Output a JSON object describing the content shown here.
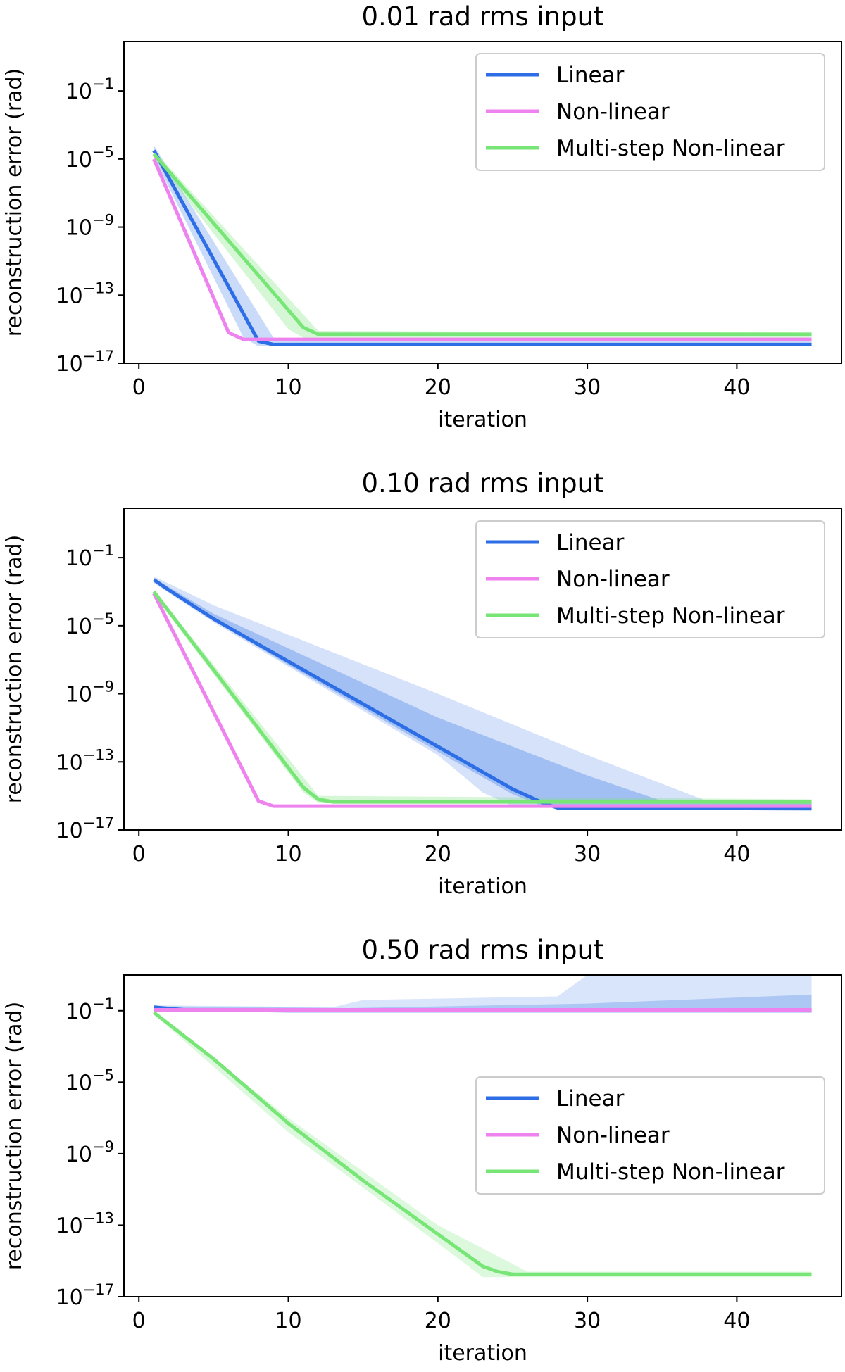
{
  "chart_data": [
    {
      "type": "line",
      "title": "0.01 rad rms input",
      "xlabel": "iteration",
      "ylabel": "reconstruction error (rad)",
      "yscale": "log",
      "xlim": [
        -1,
        47
      ],
      "ylim_exp": [
        -17,
        1.9
      ],
      "xticks": [
        0,
        10,
        20,
        30,
        40
      ],
      "yticks": [
        {
          "label": "10",
          "exp": "−1",
          "value": -1
        },
        {
          "label": "10",
          "exp": "−5",
          "value": -5
        },
        {
          "label": "10",
          "exp": "−9",
          "value": -9
        },
        {
          "label": "10",
          "exp": "−13",
          "value": -13
        },
        {
          "label": "10",
          "exp": "−17",
          "value": -17
        }
      ],
      "legend_position": "top-right",
      "series": [
        {
          "name": "Linear",
          "color": "#2d6ee6",
          "width": 5,
          "points": [
            [
              1,
              -4.5
            ],
            [
              8,
              -15.7
            ],
            [
              9,
              -15.9
            ],
            [
              45,
              -15.9
            ]
          ],
          "bands": [
            {
              "color": "#2d6ee6",
              "opacity": 0.25,
              "upper": [
                [
                  1,
                  -4.2
                ],
                [
                  9,
                  -15.5
                ],
                [
                  45,
                  -15.7
                ]
              ],
              "lower": [
                [
                  1,
                  -4.9
                ],
                [
                  7,
                  -15.5
                ],
                [
                  8,
                  -16.0
                ],
                [
                  45,
                  -16.0
                ]
              ]
            }
          ]
        },
        {
          "name": "Non-linear",
          "color": "#ee82ee",
          "width": 5,
          "points": [
            [
              1,
              -5.0
            ],
            [
              6,
              -15.2
            ],
            [
              7,
              -15.6
            ],
            [
              45,
              -15.6
            ]
          ],
          "bands": []
        },
        {
          "name": "Multi-step Non-linear",
          "color": "#77e677",
          "width": 5,
          "points": [
            [
              1,
              -4.7
            ],
            [
              11,
              -14.9
            ],
            [
              12,
              -15.3
            ],
            [
              45,
              -15.3
            ]
          ],
          "bands": [
            {
              "color": "#77e677",
              "opacity": 0.3,
              "upper": [
                [
                  1,
                  -4.5
                ],
                [
                  12,
                  -15.1
                ],
                [
                  45,
                  -15.2
                ]
              ],
              "lower": [
                [
                  1,
                  -4.9
                ],
                [
                  10,
                  -15.0
                ],
                [
                  11,
                  -15.5
                ],
                [
                  45,
                  -15.5
                ]
              ]
            }
          ]
        }
      ]
    },
    {
      "type": "line",
      "title": "0.10 rad rms input",
      "xlabel": "iteration",
      "ylabel": "reconstruction error (rad)",
      "yscale": "log",
      "xlim": [
        -1,
        47
      ],
      "ylim_exp": [
        -17,
        1.9
      ],
      "xticks": [
        0,
        10,
        20,
        30,
        40
      ],
      "yticks": [
        {
          "label": "10",
          "exp": "−1",
          "value": -1
        },
        {
          "label": "10",
          "exp": "−5",
          "value": -5
        },
        {
          "label": "10",
          "exp": "−9",
          "value": -9
        },
        {
          "label": "10",
          "exp": "−13",
          "value": -13
        },
        {
          "label": "10",
          "exp": "−17",
          "value": -17
        }
      ],
      "legend_position": "top-right",
      "series": [
        {
          "name": "Linear",
          "color": "#2d6ee6",
          "width": 5,
          "points": [
            [
              1,
              -2.3
            ],
            [
              2,
              -2.9
            ],
            [
              5,
              -4.6
            ],
            [
              10,
              -7.1
            ],
            [
              15,
              -9.6
            ],
            [
              20,
              -12.1
            ],
            [
              25,
              -14.6
            ],
            [
              27,
              -15.4
            ],
            [
              28,
              -15.7
            ],
            [
              45,
              -15.75
            ]
          ],
          "bands": [
            {
              "color": "#2d6ee6",
              "opacity": 0.2,
              "upper": [
                [
                  1,
                  -2.1
                ],
                [
                  5,
                  -3.8
                ],
                [
                  20,
                  -9.0
                ],
                [
                  30,
                  -12.6
                ],
                [
                  38,
                  -15.3
                ],
                [
                  45,
                  -15.4
                ]
              ],
              "lower": [
                [
                  1,
                  -2.5
                ],
                [
                  5,
                  -4.8
                ],
                [
                  10,
                  -7.4
                ],
                [
                  20,
                  -12.6
                ],
                [
                  23,
                  -14.8
                ],
                [
                  25,
                  -15.6
                ],
                [
                  45,
                  -15.75
                ]
              ]
            },
            {
              "color": "#2d6ee6",
              "opacity": 0.3,
              "upper": [
                [
                  1,
                  -2.2
                ],
                [
                  5,
                  -4.3
                ],
                [
                  20,
                  -10.4
                ],
                [
                  30,
                  -13.8
                ],
                [
                  35,
                  -15.3
                ],
                [
                  45,
                  -15.4
                ]
              ],
              "lower": [
                [
                  1,
                  -2.4
                ],
                [
                  5,
                  -4.7
                ],
                [
                  10,
                  -7.3
                ],
                [
                  20,
                  -12.4
                ],
                [
                  25,
                  -14.9
                ],
                [
                  27,
                  -15.6
                ],
                [
                  45,
                  -15.75
                ]
              ]
            }
          ]
        },
        {
          "name": "Non-linear",
          "color": "#ee82ee",
          "width": 5,
          "points": [
            [
              1,
              -3.1
            ],
            [
              8,
              -15.3
            ],
            [
              9,
              -15.6
            ],
            [
              45,
              -15.6
            ]
          ],
          "bands": []
        },
        {
          "name": "Multi-step Non-linear",
          "color": "#77e677",
          "width": 5,
          "points": [
            [
              1,
              -3.0
            ],
            [
              11,
              -14.5
            ],
            [
              12,
              -15.2
            ],
            [
              13,
              -15.35
            ],
            [
              45,
              -15.35
            ]
          ],
          "bands": [
            {
              "color": "#77e677",
              "opacity": 0.3,
              "upper": [
                [
                  1,
                  -2.9
                ],
                [
                  12,
                  -15.0
                ],
                [
                  45,
                  -15.2
                ]
              ],
              "lower": [
                [
                  1,
                  -3.2
                ],
                [
                  11,
                  -14.8
                ],
                [
                  12,
                  -15.4
                ],
                [
                  45,
                  -15.5
                ]
              ]
            }
          ]
        }
      ]
    },
    {
      "type": "line",
      "title": "0.50 rad rms input",
      "xlabel": "iteration",
      "ylabel": "reconstruction error (rad)",
      "yscale": "log",
      "xlim": [
        -1,
        47
      ],
      "ylim_exp": [
        -17,
        1.0
      ],
      "xticks": [
        0,
        10,
        20,
        30,
        40
      ],
      "yticks": [
        {
          "label": "10",
          "exp": "−1",
          "value": -1
        },
        {
          "label": "10",
          "exp": "−5",
          "value": -5
        },
        {
          "label": "10",
          "exp": "−9",
          "value": -9
        },
        {
          "label": "10",
          "exp": "−13",
          "value": -13
        },
        {
          "label": "10",
          "exp": "−17",
          "value": -17
        }
      ],
      "legend_position": "center-right",
      "series": [
        {
          "name": "Linear",
          "color": "#2d6ee6",
          "width": 5,
          "points": [
            [
              1,
              -0.8
            ],
            [
              3,
              -0.95
            ],
            [
              10,
              -1.0
            ],
            [
              45,
              -1.0
            ]
          ],
          "bands": [
            {
              "color": "#2d6ee6",
              "opacity": 0.18,
              "upper": [
                [
                  1,
                  -0.7
                ],
                [
                  13,
                  -0.8
                ],
                [
                  15,
                  -0.4
                ],
                [
                  28,
                  -0.2
                ],
                [
                  30,
                  1.0
                ],
                [
                  45,
                  1.0
                ]
              ],
              "lower": [
                [
                  1,
                  -1.0
                ],
                [
                  45,
                  -1.1
                ]
              ]
            },
            {
              "color": "#2d6ee6",
              "opacity": 0.25,
              "upper": [
                [
                  1,
                  -0.75
                ],
                [
                  14,
                  -0.85
                ],
                [
                  30,
                  -0.6
                ],
                [
                  45,
                  -0.1
                ]
              ],
              "lower": [
                [
                  1,
                  -0.95
                ],
                [
                  45,
                  -1.05
                ]
              ]
            }
          ]
        },
        {
          "name": "Non-linear",
          "color": "#ee82ee",
          "width": 5,
          "points": [
            [
              1,
              -0.95
            ],
            [
              45,
              -0.95
            ]
          ],
          "bands": []
        },
        {
          "name": "Multi-step Non-linear",
          "color": "#77e677",
          "width": 5,
          "points": [
            [
              1,
              -1.1
            ],
            [
              5,
              -3.7
            ],
            [
              10,
              -7.3
            ],
            [
              15,
              -10.5
            ],
            [
              20,
              -13.5
            ],
            [
              23,
              -15.3
            ],
            [
              24,
              -15.6
            ],
            [
              25,
              -15.75
            ],
            [
              45,
              -15.75
            ]
          ],
          "bands": [
            {
              "color": "#77e677",
              "opacity": 0.25,
              "upper": [
                [
                  1,
                  -1.0
                ],
                [
                  10,
                  -7.0
                ],
                [
                  20,
                  -13.0
                ],
                [
                  26,
                  -15.6
                ],
                [
                  45,
                  -15.6
                ]
              ],
              "lower": [
                [
                  1,
                  -1.2
                ],
                [
                  10,
                  -7.8
                ],
                [
                  20,
                  -14.0
                ],
                [
                  23,
                  -15.9
                ],
                [
                  45,
                  -15.9
                ]
              ]
            }
          ]
        }
      ]
    }
  ]
}
